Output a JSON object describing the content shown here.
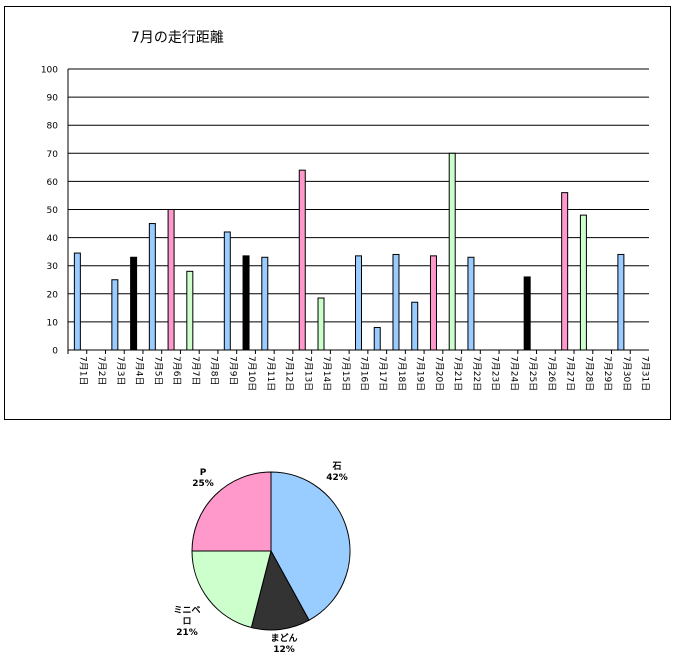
{
  "chart_data": [
    {
      "type": "bar",
      "title": "7月の走行距離",
      "categories": [
        "7月1日",
        "7月2日",
        "7月3日",
        "7月4日",
        "7月5日",
        "7月6日",
        "7月7日",
        "7月8日",
        "7月9日",
        "7月10日",
        "7月11日",
        "7月12日",
        "7月13日",
        "7月14日",
        "7月15日",
        "7月16日",
        "7月17日",
        "7月18日",
        "7月19日",
        "7月20日",
        "7月21日",
        "7月22日",
        "7月23日",
        "7月24日",
        "7月25日",
        "7月26日",
        "7月27日",
        "7月28日",
        "7月29日",
        "7月30日",
        "7月31日"
      ],
      "values": [
        34.5,
        0,
        25,
        33,
        45,
        50,
        28,
        0,
        42,
        33.5,
        33,
        0,
        64,
        18.5,
        0,
        33.5,
        8,
        34,
        17,
        33.5,
        70,
        33,
        0,
        0,
        26,
        0,
        56,
        48,
        0,
        34,
        0
      ],
      "bar_colors": [
        "#99ccff",
        "#99ccff",
        "#99ccff",
        "#000000",
        "#99ccff",
        "#ff99cc",
        "#ccffcc",
        "#99ccff",
        "#99ccff",
        "#000000",
        "#99ccff",
        "#99ccff",
        "#ff99cc",
        "#ccffcc",
        "#99ccff",
        "#99ccff",
        "#99ccff",
        "#99ccff",
        "#99ccff",
        "#ff99cc",
        "#ccffcc",
        "#99ccff",
        "#99ccff",
        "#99ccff",
        "#000000",
        "#99ccff",
        "#ff99cc",
        "#ccffcc",
        "#99ccff",
        "#99ccff",
        "#99ccff"
      ],
      "ylim": [
        0,
        100
      ],
      "yticks": [
        0,
        10,
        20,
        30,
        40,
        50,
        60,
        70,
        80,
        90,
        100
      ],
      "grid": true,
      "xlabel": "",
      "ylabel": ""
    },
    {
      "type": "pie",
      "slices": [
        {
          "label": "石",
          "value": 42,
          "pct_text": "42%",
          "color": "#99ccff"
        },
        {
          "label": "まどん",
          "value": 12,
          "pct_text": "12%",
          "color": "#333333"
        },
        {
          "label": "ミニベロ",
          "value": 21,
          "pct_text": "21%",
          "color": "#ccffcc"
        },
        {
          "label": "P",
          "value": 25,
          "pct_text": "25%",
          "color": "#ff99cc"
        }
      ]
    }
  ]
}
